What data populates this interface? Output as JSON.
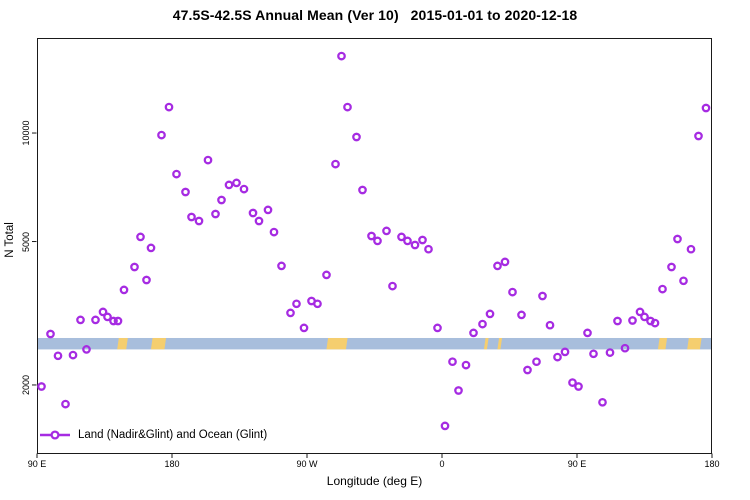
{
  "title": "47.5S-42.5S Annual Mean (Ver 10)   2015-01-01 to 2020-12-18",
  "legend": {
    "label": "Land (Nadir&Glint) and Ocean (Glint)"
  },
  "colors": {
    "marker": "#A62BE2",
    "ocean_strip": "#A8BEDC",
    "land_strip": "#F5CE6F",
    "axis": "#1a1a1a",
    "text": "#000000"
  },
  "chart_data": {
    "type": "scatter",
    "title": "47.5S-42.5S Annual Mean (Ver 10)   2015-01-01 to 2020-12-18",
    "xlabel": "Longitude (deg E)",
    "ylabel": "N Total",
    "y_scale": "log10",
    "xlim": [
      90,
      540
    ],
    "ylim": [
      1295,
      18350
    ],
    "grid": false,
    "legend_position": "bottom-left-inside",
    "x_ticks": [
      {
        "pos": 90,
        "label": "90 E"
      },
      {
        "pos": 180,
        "label": "180"
      },
      {
        "pos": 270,
        "label": "90 W"
      },
      {
        "pos": 360,
        "label": "0"
      },
      {
        "pos": 450,
        "label": "90 E"
      },
      {
        "pos": 540,
        "label": "180"
      }
    ],
    "y_ticks": [
      {
        "value": 2000,
        "label": "2000"
      },
      {
        "value": 5000,
        "label": "5000"
      },
      {
        "value": 10000,
        "label": "10000"
      }
    ],
    "map_strip": {
      "note": "ocean/land latitude strip drawn across the plot near N=2600",
      "value_top": 2700,
      "value_bottom": 2510,
      "land_segments_lon": [
        [
          144,
          150
        ],
        [
          166.5,
          175.5
        ],
        [
          283.5,
          296.5
        ],
        [
          388.5,
          390.5
        ],
        [
          397.5,
          399.5
        ],
        [
          504.5,
          509.5
        ],
        [
          524,
          532.5
        ]
      ]
    },
    "series": [
      {
        "name": "Land (Nadir&Glint) and Ocean (Glint)",
        "points": [
          [
            93,
            1980
          ],
          [
            99,
            2770
          ],
          [
            104,
            2410
          ],
          [
            109,
            1770
          ],
          [
            114,
            2420
          ],
          [
            119,
            3030
          ],
          [
            123,
            2510
          ],
          [
            129,
            3030
          ],
          [
            134,
            3190
          ],
          [
            137,
            3090
          ],
          [
            141,
            3010
          ],
          [
            144,
            3010
          ],
          [
            148,
            3670
          ],
          [
            155,
            4250
          ],
          [
            159,
            5150
          ],
          [
            163,
            3910
          ],
          [
            166,
            4800
          ],
          [
            173,
            9870
          ],
          [
            178,
            11800
          ],
          [
            183,
            7690
          ],
          [
            189,
            6860
          ],
          [
            193,
            5850
          ],
          [
            198,
            5700
          ],
          [
            204,
            8410
          ],
          [
            209,
            5960
          ],
          [
            213,
            6520
          ],
          [
            218,
            7180
          ],
          [
            223,
            7270
          ],
          [
            228,
            6990
          ],
          [
            234,
            6000
          ],
          [
            238,
            5700
          ],
          [
            244,
            6120
          ],
          [
            248,
            5310
          ],
          [
            253,
            4280
          ],
          [
            259,
            3170
          ],
          [
            263,
            3360
          ],
          [
            268,
            2880
          ],
          [
            273,
            3420
          ],
          [
            277,
            3360
          ],
          [
            283,
            4040
          ],
          [
            289,
            8200
          ],
          [
            293,
            16350
          ],
          [
            297,
            11800
          ],
          [
            303,
            9750
          ],
          [
            307,
            6950
          ],
          [
            313,
            5180
          ],
          [
            317,
            5020
          ],
          [
            323,
            5350
          ],
          [
            327,
            3760
          ],
          [
            333,
            5150
          ],
          [
            337,
            5020
          ],
          [
            342,
            4890
          ],
          [
            347,
            5050
          ],
          [
            351,
            4760
          ],
          [
            357,
            2880
          ],
          [
            362,
            1540
          ],
          [
            367,
            2320
          ],
          [
            371,
            1930
          ],
          [
            376,
            2270
          ],
          [
            381,
            2790
          ],
          [
            387,
            2950
          ],
          [
            392,
            3150
          ],
          [
            397,
            4280
          ],
          [
            402,
            4390
          ],
          [
            407,
            3620
          ],
          [
            413,
            3130
          ],
          [
            417,
            2200
          ],
          [
            423,
            2320
          ],
          [
            427,
            3530
          ],
          [
            432,
            2930
          ],
          [
            437,
            2390
          ],
          [
            442,
            2470
          ],
          [
            447,
            2030
          ],
          [
            451,
            1980
          ],
          [
            457,
            2790
          ],
          [
            461,
            2440
          ],
          [
            467,
            1790
          ],
          [
            472,
            2460
          ],
          [
            477,
            3010
          ],
          [
            482,
            2530
          ],
          [
            487,
            3020
          ],
          [
            492,
            3190
          ],
          [
            495,
            3090
          ],
          [
            499,
            3010
          ],
          [
            502,
            2970
          ],
          [
            507,
            3690
          ],
          [
            513,
            4250
          ],
          [
            517,
            5080
          ],
          [
            521,
            3890
          ],
          [
            526,
            4760
          ],
          [
            531,
            9810
          ],
          [
            536,
            11730
          ]
        ]
      }
    ]
  }
}
